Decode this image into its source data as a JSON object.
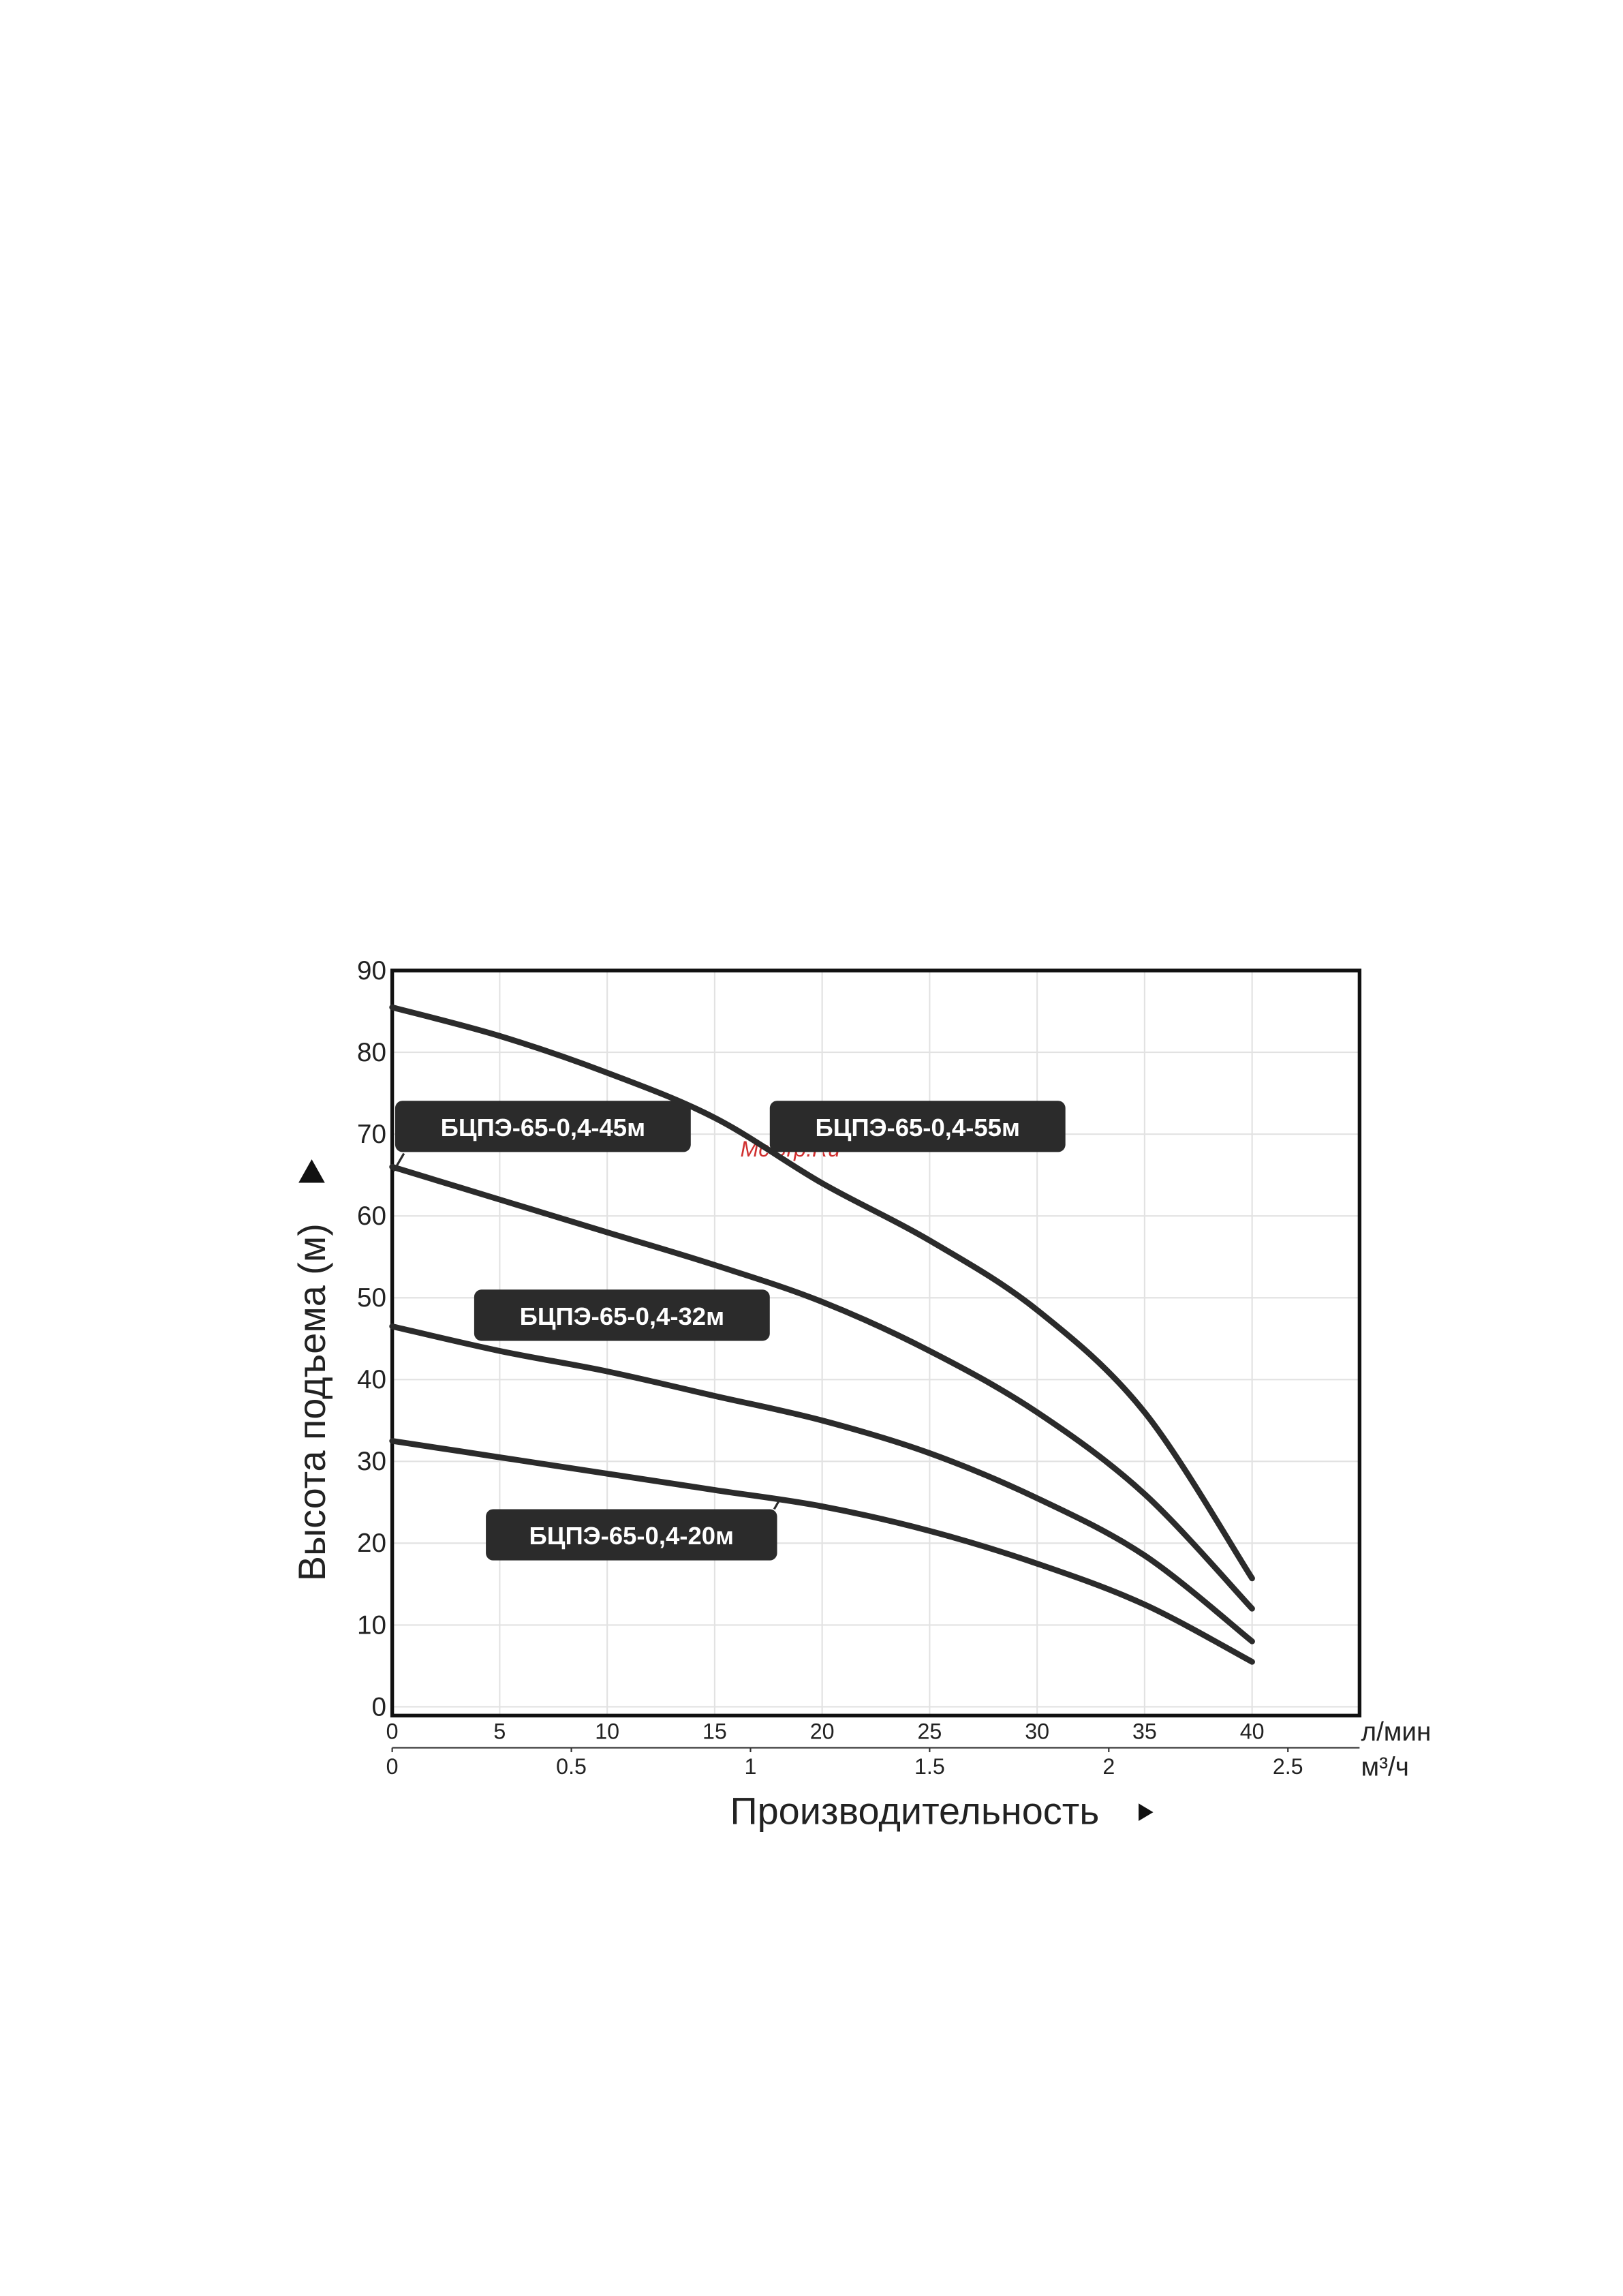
{
  "chart_data": {
    "type": "line",
    "x_label": "Производительность",
    "y_label": "Высота подъема (м)",
    "x_unit": "л/мин",
    "x2_unit": "м³/ч",
    "watermark": "McGrp.Ru",
    "x": [
      0,
      5,
      10,
      15,
      20,
      25,
      30,
      35,
      40
    ],
    "xlim": [
      0,
      45
    ],
    "xticks": [
      0,
      5,
      10,
      15,
      20,
      25,
      30,
      35,
      40
    ],
    "x2lim": [
      0,
      2.7
    ],
    "x2ticks": [
      0,
      0.5,
      1,
      1.5,
      2,
      2.5
    ],
    "ylim": [
      0,
      90
    ],
    "yticks": [
      0,
      10,
      20,
      30,
      40,
      50,
      60,
      70,
      80,
      90
    ],
    "grid": true,
    "series": [
      {
        "name": "БЦПЭ-65-0,4-55м",
        "color": "#2b2b2b",
        "values": [
          85.5,
          82,
          77.5,
          72,
          64,
          57,
          48.5,
          36,
          15.7
        ]
      },
      {
        "name": "БЦПЭ-65-0,4-45м",
        "color": "#2b2b2b",
        "values": [
          66,
          62,
          58,
          54,
          49.5,
          43.5,
          36,
          26,
          12
        ]
      },
      {
        "name": "БЦПЭ-65-0,4-32м",
        "color": "#2b2b2b",
        "values": [
          46.5,
          43.5,
          41,
          38,
          35,
          31,
          25.5,
          18.5,
          8
        ]
      },
      {
        "name": "БЦПЭ-65-0,4-20м",
        "color": "#2b2b2b",
        "values": [
          32.5,
          30.5,
          28.5,
          26.5,
          24.5,
          21.5,
          17.5,
          12.5,
          5.5
        ]
      }
    ]
  }
}
